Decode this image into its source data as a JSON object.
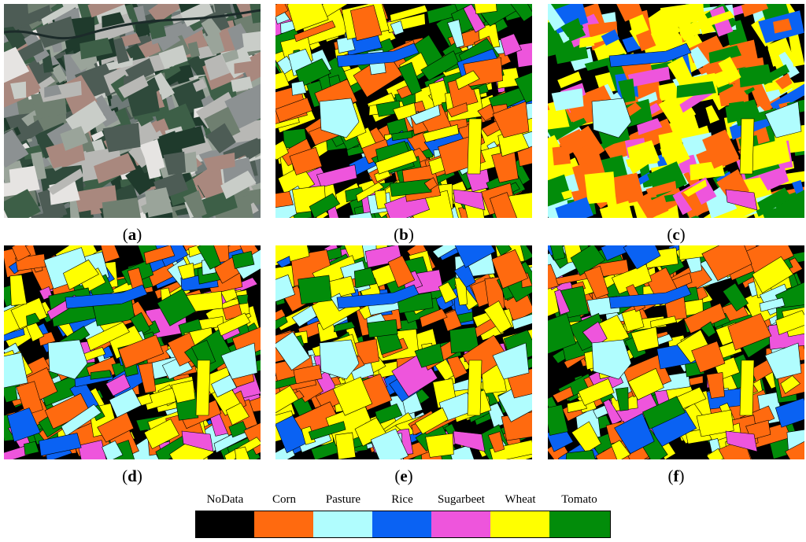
{
  "panels": [
    {
      "id": "a",
      "kind": "satellite",
      "label_open": "(",
      "label_letter": "a",
      "label_close": ")"
    },
    {
      "id": "b",
      "kind": "classification",
      "label_open": "(",
      "label_letter": "b",
      "label_close": ")"
    },
    {
      "id": "c",
      "kind": "classification",
      "label_open": "(",
      "label_letter": "c",
      "label_close": ")"
    },
    {
      "id": "d",
      "kind": "classification",
      "label_open": "(",
      "label_letter": "d",
      "label_close": ")"
    },
    {
      "id": "e",
      "kind": "classification",
      "label_open": "(",
      "label_letter": "e",
      "label_close": ")"
    },
    {
      "id": "f",
      "kind": "classification",
      "label_open": "(",
      "label_letter": "f",
      "label_close": ")"
    }
  ],
  "legend": [
    {
      "name": "NoData",
      "color": "#000000"
    },
    {
      "name": "Corn",
      "color": "#ff6a0f"
    },
    {
      "name": "Pasture",
      "color": "#b0fdfe"
    },
    {
      "name": "Rice",
      "color": "#0a62f3"
    },
    {
      "name": "Sugarbeet",
      "color": "#ee55dc"
    },
    {
      "name": "Wheat",
      "color": "#ffff00"
    },
    {
      "name": "Tomato",
      "color": "#028c0a"
    }
  ]
}
